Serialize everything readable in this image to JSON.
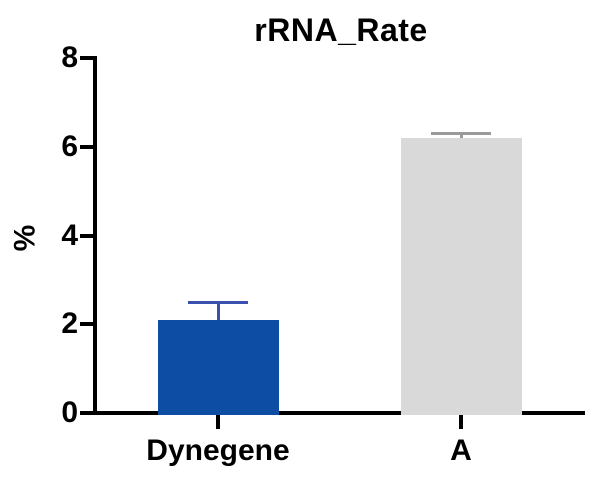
{
  "chart_data": {
    "type": "bar",
    "title": "rRNA_Rate",
    "xlabel": "",
    "ylabel": "%",
    "categories": [
      "Dynegene",
      "A"
    ],
    "values": [
      2.1,
      6.2
    ],
    "errors_plus": [
      0.4,
      0.1
    ],
    "bar_colors": [
      "#0d4da3",
      "#d9d9d9"
    ],
    "error_bar_colors": [
      "#3b4fae",
      "#9a9a9a"
    ],
    "ylim": [
      0,
      8
    ],
    "yticks": [
      0,
      2,
      4,
      6,
      8
    ],
    "grid": false,
    "legend": "none",
    "background": "#ffffff",
    "axis_color": "#000000"
  }
}
